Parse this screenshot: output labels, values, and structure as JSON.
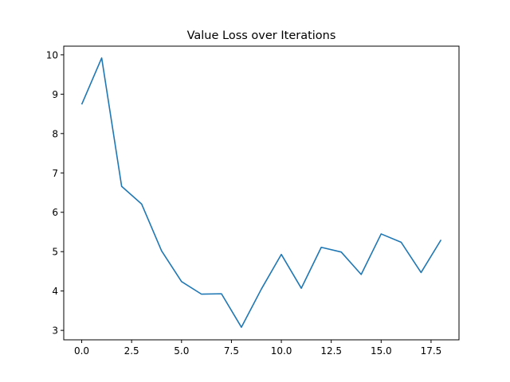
{
  "chart_data": {
    "type": "line",
    "title": "Value Loss over Iterations",
    "xlabel": "",
    "ylabel": "",
    "xlim": [
      -0.9,
      18.9
    ],
    "ylim": [
      2.76,
      10.22
    ],
    "xticks": [
      0,
      2.5,
      5,
      7.5,
      10,
      12.5,
      15,
      17.5
    ],
    "xtick_labels": [
      "0.0",
      "2.5",
      "5.0",
      "7.5",
      "10.0",
      "12.5",
      "15.0",
      "17.5"
    ],
    "yticks": [
      3,
      4,
      5,
      6,
      7,
      8,
      9,
      10
    ],
    "ytick_labels": [
      "3",
      "4",
      "5",
      "6",
      "7",
      "8",
      "9",
      "10"
    ],
    "grid": false,
    "series": [
      {
        "color": "#1f77b4",
        "x": [
          0,
          1,
          2,
          3,
          4,
          5,
          6,
          7,
          8,
          9,
          10,
          11,
          12,
          13,
          14,
          15,
          16,
          17,
          18
        ],
        "y": [
          8.74,
          9.92,
          6.66,
          6.21,
          5.02,
          4.24,
          3.92,
          3.93,
          3.08,
          4.05,
          4.93,
          4.07,
          5.11,
          4.99,
          4.42,
          5.45,
          5.24,
          4.47,
          5.3
        ]
      }
    ]
  }
}
